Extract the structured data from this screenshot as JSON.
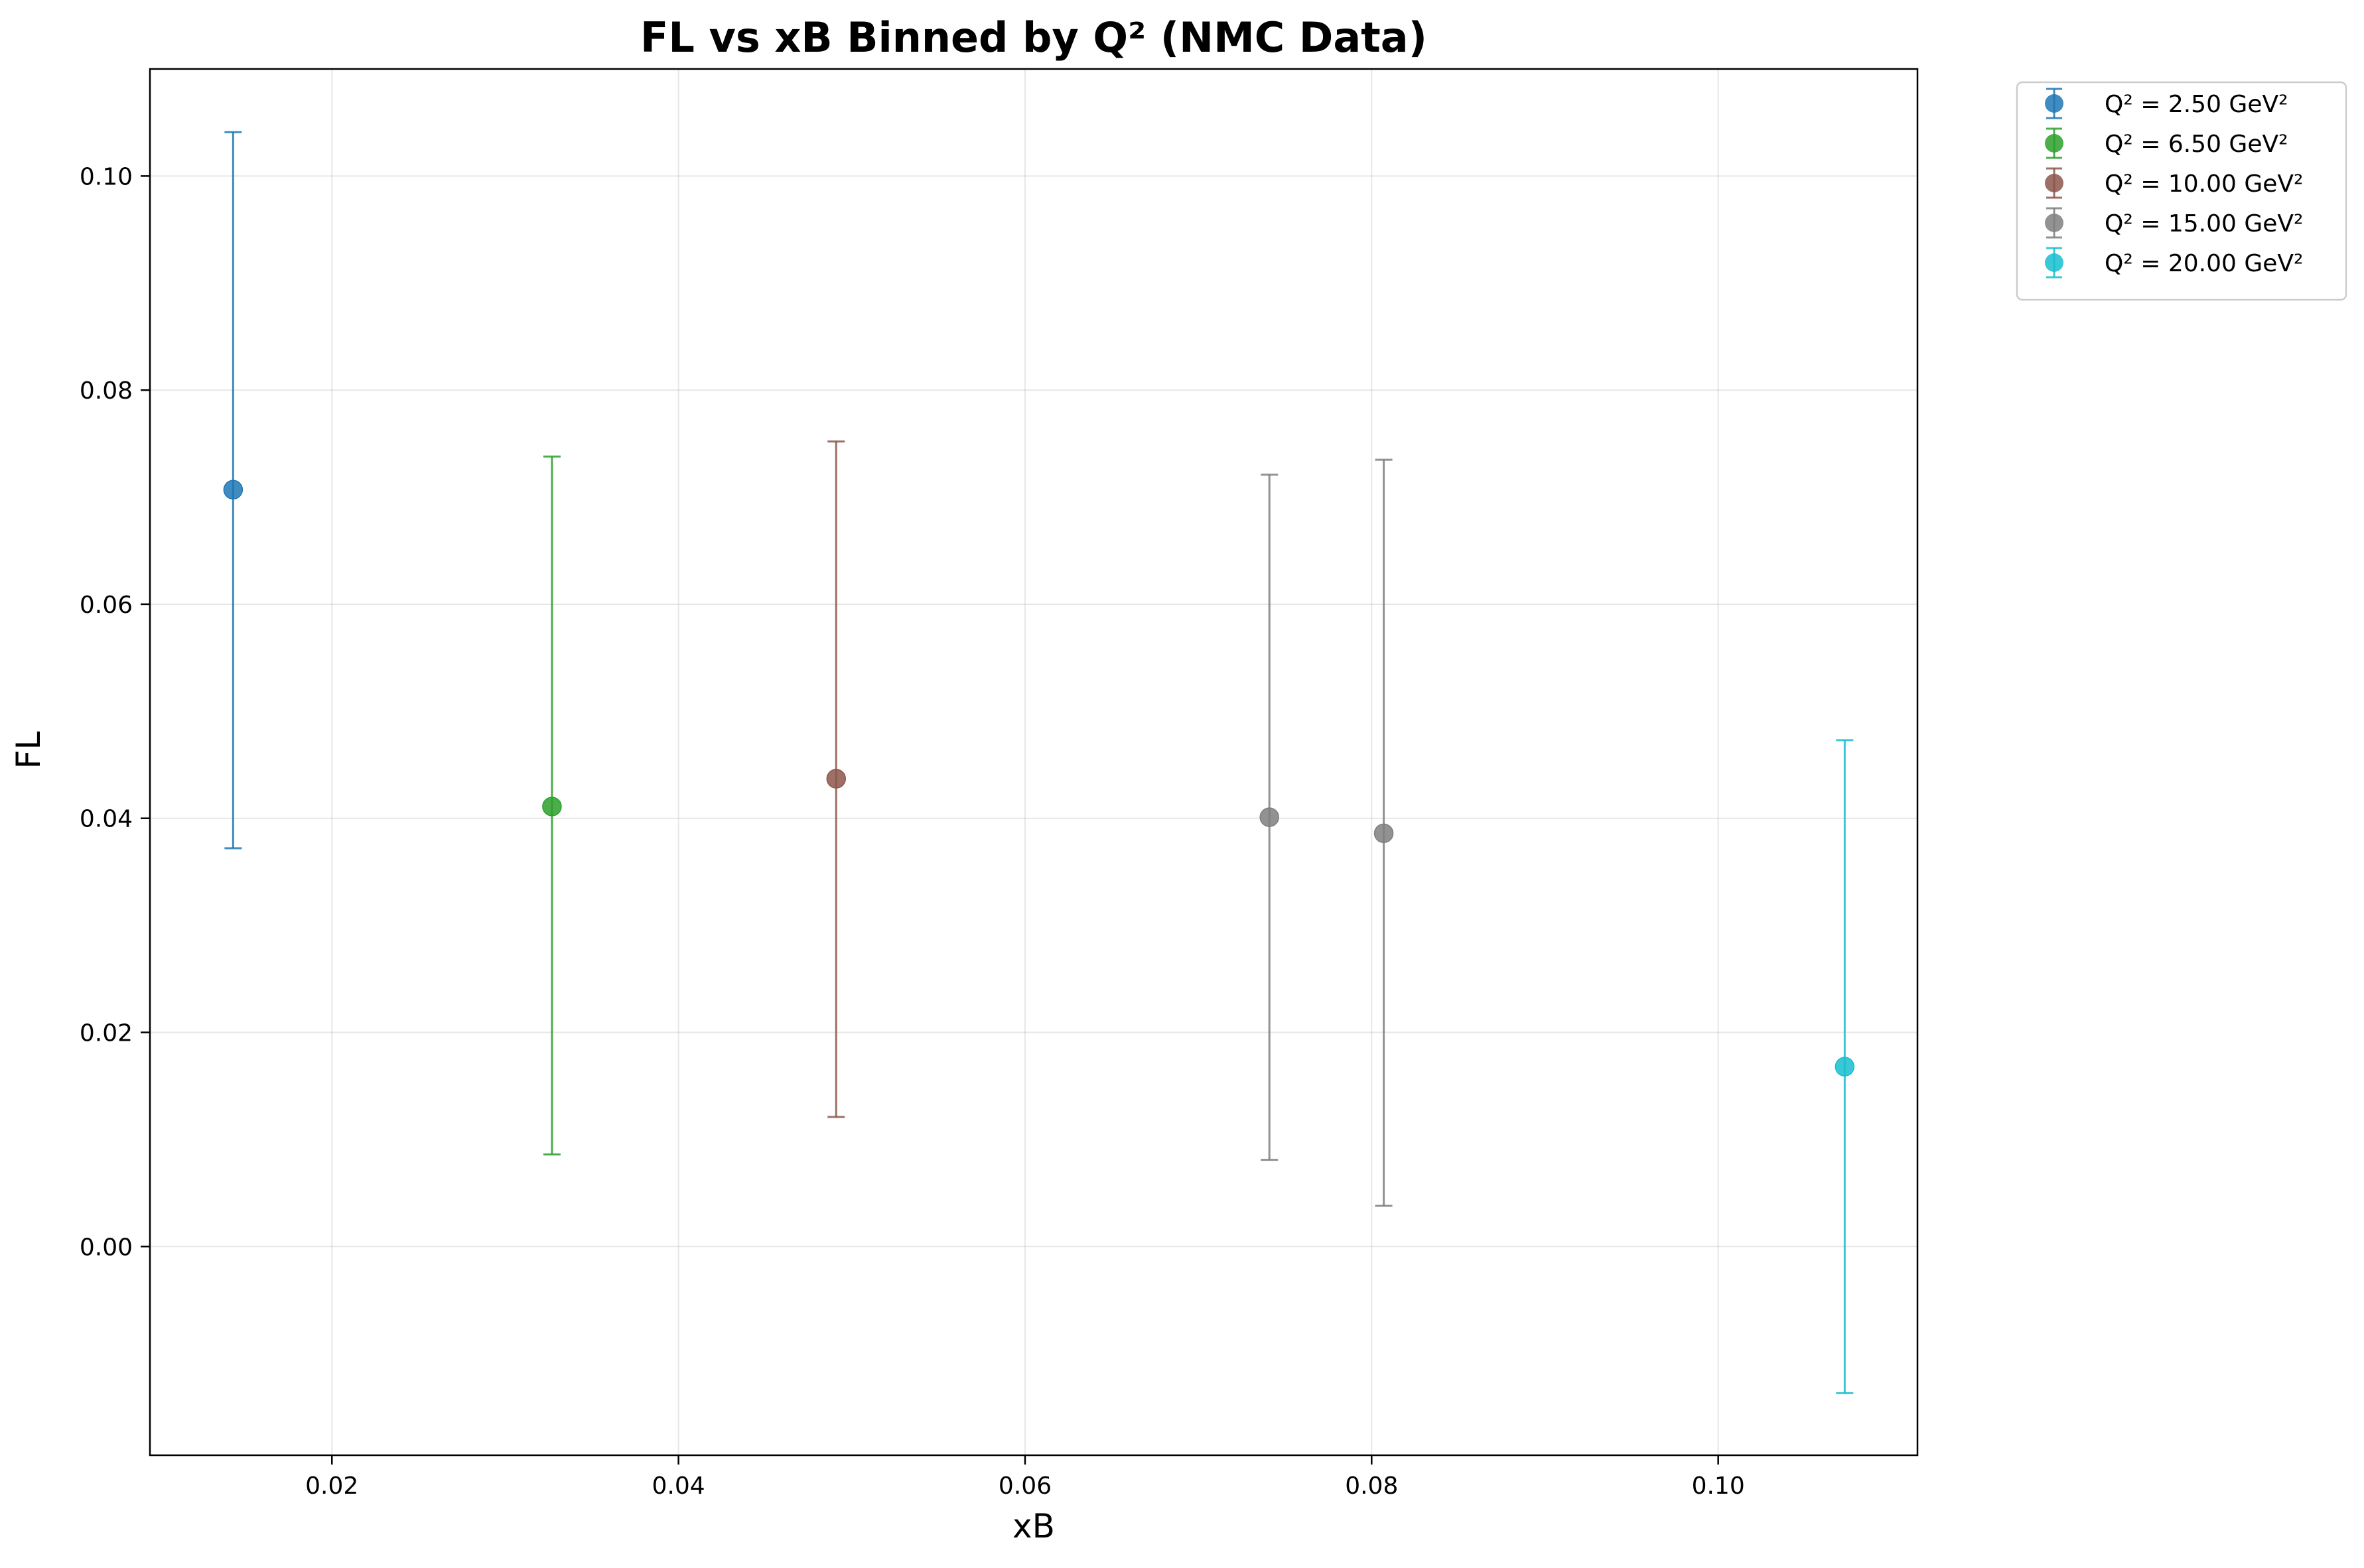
{
  "chart_data": {
    "type": "scatter",
    "title": "FL vs xB Binned by Q² (NMC Data)",
    "xlabel": "xB",
    "ylabel": "FL",
    "xlim": [
      0.0095,
      0.1115
    ],
    "ylim": [
      -0.0195,
      0.11
    ],
    "xticks": [
      0.02,
      0.04,
      0.06,
      0.08,
      0.1
    ],
    "xtick_labels": [
      "0.02",
      "0.04",
      "0.06",
      "0.08",
      "0.10"
    ],
    "yticks": [
      0.0,
      0.02,
      0.04,
      0.06,
      0.08,
      0.1
    ],
    "ytick_labels": [
      "0.00",
      "0.02",
      "0.04",
      "0.06",
      "0.08",
      "0.10"
    ],
    "grid": true,
    "legend_position": "outside-top-right",
    "series": [
      {
        "name": "Q² = 2.50 GeV²",
        "color": "#1f77b4",
        "points": [
          {
            "x": 0.0143,
            "y": 0.0707,
            "yerr_low": 0.0372,
            "yerr_high": 0.1041
          }
        ]
      },
      {
        "name": "Q² = 6.50 GeV²",
        "color": "#2ca02c",
        "points": [
          {
            "x": 0.0327,
            "y": 0.0411,
            "yerr_low": 0.0086,
            "yerr_high": 0.0738
          }
        ]
      },
      {
        "name": "Q² = 10.00 GeV²",
        "color": "#8c564b",
        "points": [
          {
            "x": 0.0491,
            "y": 0.0437,
            "yerr_low": 0.0121,
            "yerr_high": 0.0752
          }
        ]
      },
      {
        "name": "Q² = 15.00 GeV²",
        "color": "#7f7f7f",
        "points": [
          {
            "x": 0.0741,
            "y": 0.0401,
            "yerr_low": 0.0081,
            "yerr_high": 0.0721
          },
          {
            "x": 0.0807,
            "y": 0.0386,
            "yerr_low": 0.0038,
            "yerr_high": 0.0735
          }
        ]
      },
      {
        "name": "Q² = 20.00 GeV²",
        "color": "#17becf",
        "points": [
          {
            "x": 0.1073,
            "y": 0.0168,
            "yerr_low": -0.0137,
            "yerr_high": 0.0473
          }
        ]
      }
    ]
  }
}
